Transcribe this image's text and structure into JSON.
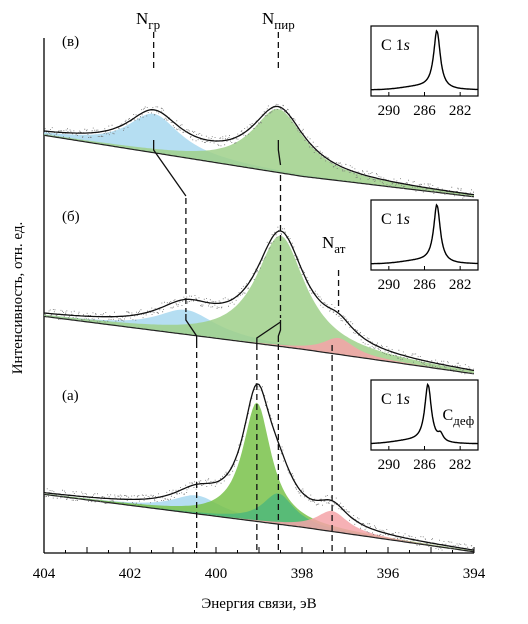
{
  "chart_data": {
    "type": "line",
    "xlabel": "Энергия связи, эВ",
    "ylabel": "Интенсивность, отн. ед.",
    "xlim": [
      404,
      394
    ],
    "x_reversed": true,
    "x_ticks": [
      404,
      402,
      400,
      398,
      396,
      394
    ],
    "grid": false,
    "peak_labels": [
      {
        "base": "N",
        "sub": "гр",
        "energy": 401.4
      },
      {
        "base": "N",
        "sub": "пир",
        "energy": 398.6
      },
      {
        "base": "N",
        "sub": "ат",
        "energy": 397.2
      }
    ],
    "panels": [
      {
        "label": "(в)",
        "background": [
          [
            404,
            0.17
          ],
          [
            398,
            0.07
          ],
          [
            394,
            0.02
          ]
        ],
        "components": [
          {
            "name": "N_гр",
            "center": 401.45,
            "height": 0.095,
            "width": 0.75,
            "color": "#a8d8f0"
          },
          {
            "name": "N_пир",
            "center": 398.55,
            "height": 0.155,
            "width": 0.75,
            "color": "#9fd08a"
          }
        ],
        "inset": {
          "label_base": "C 1",
          "label_italic": "s",
          "ticks": [
            290,
            286,
            282
          ],
          "peak_energy": 284.6
        }
      },
      {
        "label": "(б)",
        "background": [
          [
            404,
            0.16
          ],
          [
            398,
            0.08
          ],
          [
            394,
            0.02
          ]
        ],
        "components": [
          {
            "name": "N_гр",
            "center": 400.7,
            "height": 0.06,
            "width": 0.85,
            "color": "#a8d8f0"
          },
          {
            "name": "N_пир",
            "center": 398.5,
            "height": 0.27,
            "width": 0.7,
            "color": "#9fd08a"
          },
          {
            "name": "N_ат",
            "center": 397.15,
            "height": 0.04,
            "width": 0.45,
            "color": "#f4a3a8"
          }
        ],
        "inset": {
          "label_base": "C 1",
          "label_italic": "s",
          "ticks": [
            290,
            286,
            282
          ],
          "peak_energy": 284.6
        }
      },
      {
        "label": "(а)",
        "background": [
          [
            404,
            0.16
          ],
          [
            398,
            0.08
          ],
          [
            394,
            0.02
          ]
        ],
        "components": [
          {
            "name": "N_гр",
            "center": 400.45,
            "height": 0.045,
            "width": 0.7,
            "color": "#a8d8f0"
          },
          {
            "name": "N_1",
            "center": 399.05,
            "height": 0.29,
            "width": 0.4,
            "color": "#79c24a"
          },
          {
            "name": "N_пир",
            "center": 398.55,
            "height": 0.075,
            "width": 0.45,
            "color": "#4fb87a"
          },
          {
            "name": "N_ат",
            "center": 397.3,
            "height": 0.05,
            "width": 0.45,
            "color": "#f4a3a8"
          }
        ],
        "inset": {
          "label_base": "C 1",
          "label_italic": "s",
          "ticks": [
            290,
            286,
            282
          ],
          "peak_energy": 285.6,
          "shoulder_energy": 284.2,
          "extra_label_base": "C",
          "extra_label_sub": "деф"
        }
      }
    ]
  }
}
